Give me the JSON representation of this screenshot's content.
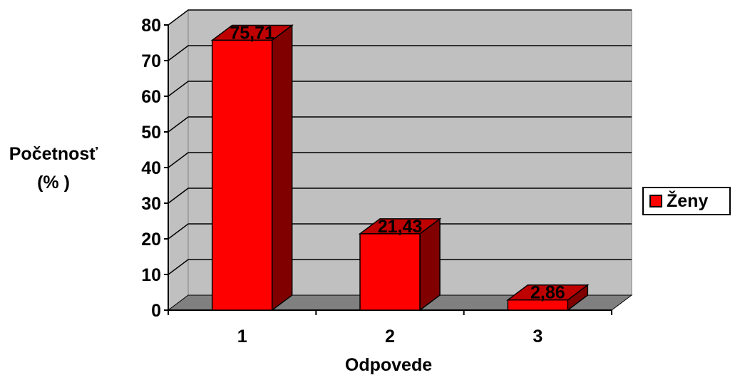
{
  "chart_data": {
    "type": "bar",
    "categories": [
      "1",
      "2",
      "3"
    ],
    "series": [
      {
        "name": "Ženy",
        "values": [
          75.71,
          21.43,
          2.86
        ],
        "color": "#ff0000"
      }
    ],
    "value_labels": [
      "75,71",
      "21,43",
      "2,86"
    ],
    "y_ticks": [
      "0",
      "10",
      "20",
      "30",
      "40",
      "50",
      "60",
      "70",
      "80"
    ],
    "ylim": [
      0,
      80
    ],
    "ylabel_lines": [
      "Početnosť",
      "(% )"
    ],
    "xlabel": "Odpovede",
    "legend_position": "right",
    "grid": true,
    "style": "3d",
    "colors": {
      "wall": "#c0c0c0",
      "floor": "#808080",
      "bar_front": "#ff0000",
      "bar_top": "#bf0000",
      "bar_side": "#800000"
    }
  }
}
